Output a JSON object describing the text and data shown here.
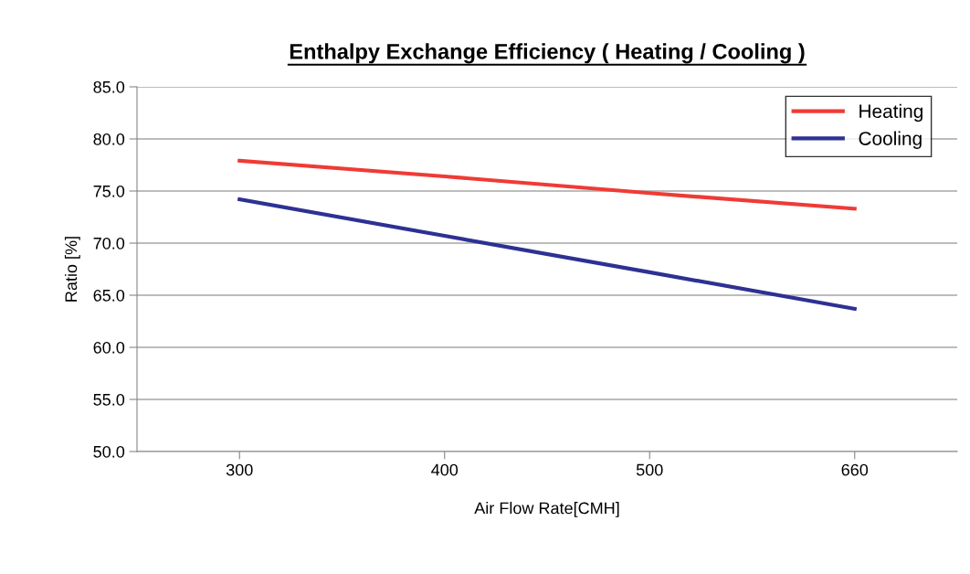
{
  "chart_data": {
    "type": "line",
    "title": "Enthalpy Exchange Efficiency ( Heating / Cooling )",
    "xlabel": "Air Flow Rate[CMH]",
    "ylabel": "Ratio [%]",
    "categories": [
      "300",
      "400",
      "500",
      "660"
    ],
    "series": [
      {
        "name": "Heating",
        "color": "#ef3b36",
        "values": [
          77.9,
          76.4,
          74.8,
          73.3
        ]
      },
      {
        "name": "Cooling",
        "color": "#2e3192",
        "values": [
          74.2,
          70.7,
          67.2,
          63.7
        ]
      }
    ],
    "ylim": [
      50,
      85
    ],
    "yticks": [
      {
        "value": 50,
        "label": "50.0"
      },
      {
        "value": 55,
        "label": "55.0"
      },
      {
        "value": 60,
        "label": "60.0"
      },
      {
        "value": 65,
        "label": "65.0"
      },
      {
        "value": 70,
        "label": "70.0"
      },
      {
        "value": 75,
        "label": "75.0"
      },
      {
        "value": 80,
        "label": "80.0"
      },
      {
        "value": 85,
        "label": "85.0"
      }
    ],
    "grid": "y",
    "legend": "top right",
    "marker": "none",
    "line_style": "solid"
  }
}
